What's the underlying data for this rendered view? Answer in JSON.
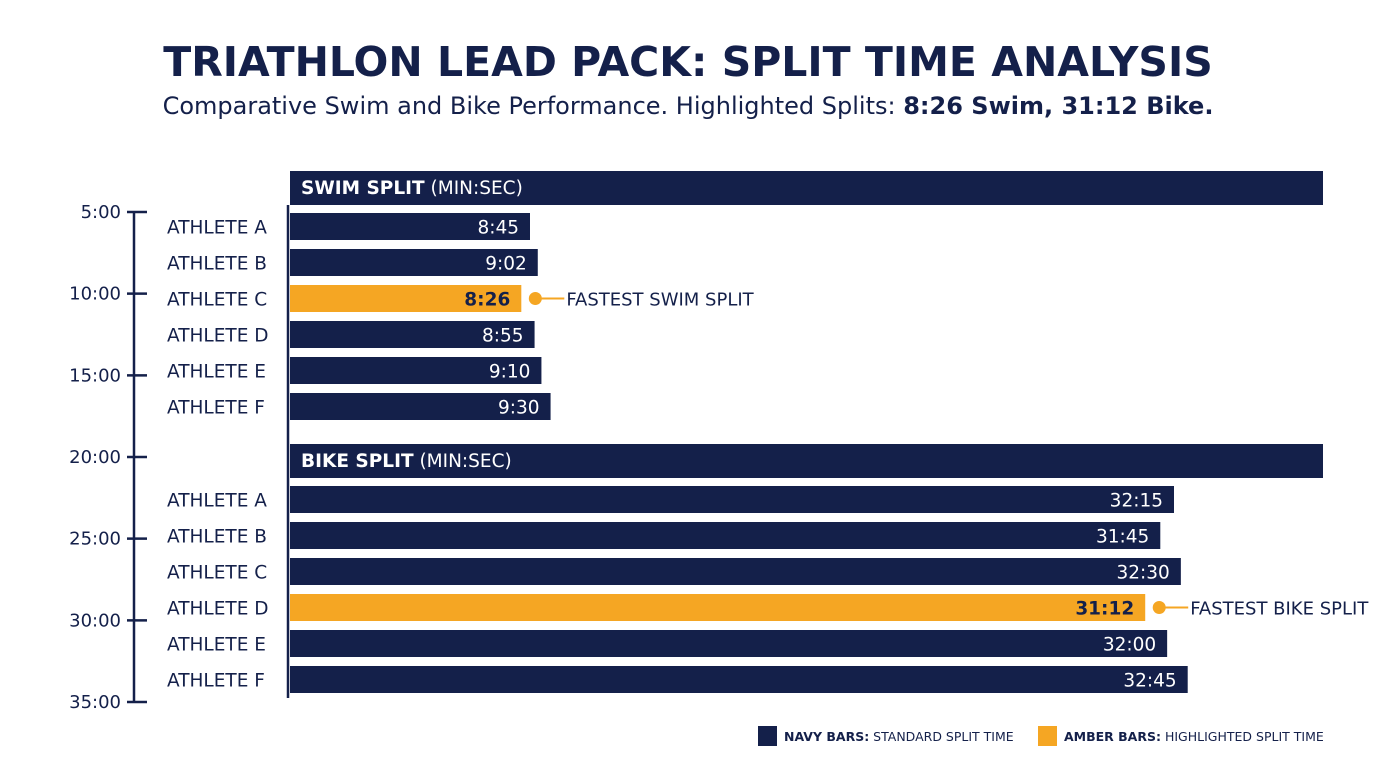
{
  "chart_data": {
    "type": "bar",
    "orientation": "horizontal",
    "title": "TRIATHLON LEAD PACK: SPLIT TIME ANALYSIS",
    "subtitle_prefix": "Comparative Swim and Bike Performance. Highlighted Splits: ",
    "subtitle_emphasis": "8:26 Swim, 31:12 Bike.",
    "axis": {
      "orientation": "vertical",
      "ticks": [
        "5:00",
        "10:00",
        "15:00",
        "20:00",
        "25:00",
        "30:00",
        "35:00"
      ],
      "range_seconds": [
        300,
        2100
      ]
    },
    "colors": {
      "standard": "#14204a",
      "highlight": "#f5a623"
    },
    "panels": [
      {
        "name": "SWIM SPLIT",
        "unit": "(MIN:SEC)",
        "categories": [
          "ATHLETE A",
          "ATHLETE B",
          "ATHLETE C",
          "ATHLETE D",
          "ATHLETE E",
          "ATHLETE F"
        ],
        "labels": [
          "8:45",
          "9:02",
          "8:26",
          "8:55",
          "9:10",
          "9:30"
        ],
        "values_seconds": [
          525,
          542,
          506,
          535,
          550,
          570
        ],
        "highlight_index": 2,
        "callout": "FASTEST SWIM SPLIT"
      },
      {
        "name": "BIKE SPLIT",
        "unit": "(MIN:SEC)",
        "categories": [
          "ATHLETE A",
          "ATHLETE B",
          "ATHLETE C",
          "ATHLETE D",
          "ATHLETE E",
          "ATHLETE F"
        ],
        "labels": [
          "32:15",
          "31:45",
          "32:30",
          "31:12",
          "32:00",
          "32:45"
        ],
        "values_seconds": [
          1935,
          1905,
          1950,
          1872,
          1920,
          1965
        ],
        "highlight_index": 3,
        "callout": "FASTEST BIKE SPLIT"
      }
    ],
    "legend": {
      "placement": "bottom-right",
      "items": [
        {
          "bold": "NAVY BARS:",
          "text": " STANDARD SPLIT TIME",
          "color": "#14204a"
        },
        {
          "bold": "AMBER BARS:",
          "text": " HIGHLIGHTED SPLIT TIME",
          "color": "#f5a623"
        }
      ]
    }
  }
}
